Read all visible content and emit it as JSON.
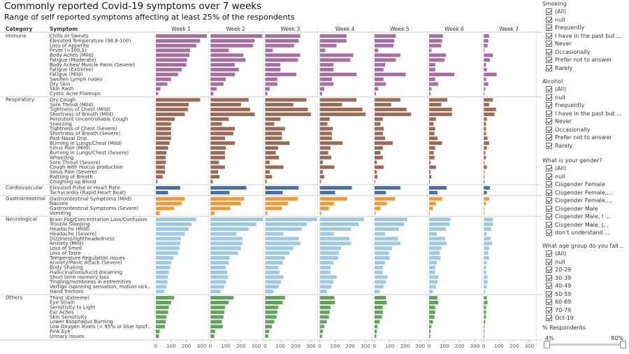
{
  "title": "Commonly reported Covid-19 symptoms over 7 weeks",
  "subtitle": "Range of self reported symptoms affecting at least 25% of the respondents",
  "chart_data": {
    "type": "bar",
    "orientation": "horizontal",
    "row_header": "Category",
    "symptom_header": "Symptom",
    "weeks": [
      "Week 1",
      "Week 2",
      "Week 3",
      "Week 4",
      "Week 5",
      "Week 6",
      "Week 7"
    ],
    "x_ticks": [
      0,
      100,
      200,
      300
    ],
    "xlim": [
      0,
      330
    ],
    "categories": [
      {
        "name": "Immune",
        "color": "#a86ea1",
        "symptoms": [
          {
            "label": "Chills or Sweats",
            "values": [
              335,
              340,
              230,
              175,
              140,
              90,
              35
            ]
          },
          {
            "label": "Elevated Temperature (98.8-100)",
            "values": [
              290,
              290,
              220,
              175,
              130,
              85,
              30
            ]
          },
          {
            "label": "Loss of Appetite",
            "values": [
              265,
              280,
              190,
              110,
              125,
              80,
              25
            ]
          },
          {
            "label": "Fever (>100.1)",
            "values": [
              225,
              120,
              50,
              35,
              25,
              15,
              5
            ]
          },
          {
            "label": "Body Aches (Mild)",
            "values": [
              220,
              215,
              230,
              220,
              170,
              110,
              60
            ]
          },
          {
            "label": "Fatigue (Moderate)",
            "values": [
              205,
              230,
              215,
              200,
              140,
              100,
              40
            ]
          },
          {
            "label": "Body Aches/ Muscle Pains (Severe)",
            "values": [
              200,
              160,
              100,
              90,
              70,
              40,
              15
            ]
          },
          {
            "label": "Fatigue (Extreme)",
            "values": [
              170,
              185,
              100,
              90,
              60,
              40,
              20
            ]
          },
          {
            "label": "Fatigue (Mild)",
            "values": [
              145,
              160,
              205,
              240,
              205,
              165,
              85
            ]
          },
          {
            "label": "Swollen Lymph nodes",
            "values": [
              100,
              100,
              80,
              80,
              60,
              40,
              15
            ]
          },
          {
            "label": "Dry Skin",
            "values": [
              75,
              85,
              80,
              90,
              75,
              60,
              30
            ]
          },
          {
            "label": "Skin Rash",
            "values": [
              30,
              40,
              30,
              30,
              25,
              15,
              10
            ]
          },
          {
            "label": "Cystic Acne Flareups",
            "values": [
              15,
              20,
              15,
              15,
              10,
              10,
              5
            ]
          }
        ]
      },
      {
        "name": "Respiratory",
        "color": "#9c6b57",
        "symptoms": [
          {
            "label": "Dry Cough",
            "values": [
              290,
              250,
              270,
              240,
              170,
              120,
              60
            ]
          },
          {
            "label": "Sore Throat (Mild)",
            "values": [
              215,
              200,
              185,
              145,
              110,
              80,
              35
            ]
          },
          {
            "label": "Tightness of Chest (Mild)",
            "values": [
              210,
              260,
              280,
              280,
              210,
              150,
              80
            ]
          },
          {
            "label": "Shortness of Breath (Mild)",
            "values": [
              190,
              290,
              300,
              300,
              240,
              150,
              70
            ]
          },
          {
            "label": "Persistent Uncontrollable Cough",
            "values": [
              125,
              120,
              100,
              65,
              55,
              45,
              20
            ]
          },
          {
            "label": "Sneezing",
            "values": [
              100,
              75,
              60,
              50,
              40,
              30,
              15
            ]
          },
          {
            "label": "Tightness of Chest (Severe)",
            "values": [
              100,
              160,
              130,
              85,
              60,
              40,
              15
            ]
          },
          {
            "label": "Shortness of Breath (Severe)",
            "values": [
              100,
              150,
              110,
              80,
              55,
              35,
              15
            ]
          },
          {
            "label": "Post-Nasal Drip",
            "values": [
              100,
              95,
              110,
              80,
              70,
              55,
              25
            ]
          },
          {
            "label": "Burning in Lungs/Chest (Mild)",
            "values": [
              90,
              160,
              160,
              150,
              120,
              85,
              35
            ]
          },
          {
            "label": "Sinus Pain (Mild)",
            "values": [
              80,
              100,
              85,
              70,
              55,
              40,
              20
            ]
          },
          {
            "label": "Burning in Lungs/Chest (Severe)",
            "values": [
              70,
              95,
              70,
              55,
              40,
              30,
              10
            ]
          },
          {
            "label": "Wheezing",
            "values": [
              65,
              95,
              90,
              75,
              55,
              35,
              15
            ]
          },
          {
            "label": "Sore Throat (Severe)",
            "values": [
              65,
              55,
              30,
              20,
              15,
              10,
              5
            ]
          },
          {
            "label": "Cough with mucus production",
            "values": [
              60,
              95,
              120,
              95,
              60,
              45,
              20
            ]
          },
          {
            "label": "Sinus Pain (Severe)",
            "values": [
              60,
              50,
              30,
              20,
              15,
              10,
              5
            ]
          },
          {
            "label": "Rattling of Breath",
            "values": [
              45,
              60,
              45,
              30,
              20,
              15,
              5
            ]
          },
          {
            "label": "Coughing up Blood",
            "values": [
              10,
              15,
              10,
              8,
              5,
              3,
              2
            ]
          }
        ]
      },
      {
        "name": "Cardiovascular",
        "color": "#4a70a0",
        "symptoms": [
          {
            "label": "Elevated Pulse or Heart Rate",
            "values": [
              160,
              235,
              220,
              210,
              170,
              115,
              40
            ]
          },
          {
            "label": "Tachycardia (Rapid Heart Beat)",
            "values": [
              80,
              125,
              115,
              100,
              75,
              55,
              20
            ]
          }
        ]
      },
      {
        "name": "Gastrointestinal",
        "color": "#ef9a3a",
        "symptoms": [
          {
            "label": "Gastrointestinal Symptoms (Mild)",
            "values": [
              190,
              220,
              215,
              180,
              135,
              85,
              35
            ]
          },
          {
            "label": "Nausea",
            "values": [
              170,
              200,
              150,
              95,
              80,
              45,
              15
            ]
          },
          {
            "label": "Gastrointestinal Symptoms (Severe)",
            "values": [
              120,
              130,
              110,
              60,
              40,
              25,
              5
            ]
          },
          {
            "label": "Vomiting",
            "values": [
              25,
              25,
              15,
              10,
              8,
              5,
              2
            ]
          }
        ]
      },
      {
        "name": "Neurological",
        "color": "#9fc7e6",
        "symptoms": [
          {
            "label": "Brain Fog/Concentration Loss/Confusion",
            "values": [
              265,
              345,
              340,
              290,
              215,
              140,
              60
            ]
          },
          {
            "label": "Trouble Sleeping",
            "values": [
              235,
              300,
              275,
              255,
              195,
              135,
              60
            ]
          },
          {
            "label": "Headache (Mild)",
            "values": [
              215,
              250,
              240,
              205,
              160,
              110,
              50
            ]
          },
          {
            "label": "Headache (Severe)",
            "values": [
              190,
              170,
              120,
              90,
              70,
              50,
              20
            ]
          },
          {
            "label": "Dizziness/lightheadedness",
            "values": [
              165,
              210,
              220,
              195,
              155,
              105,
              45
            ]
          },
          {
            "label": "Anxiety (Mild)",
            "values": [
              160,
              210,
              230,
              205,
              170,
              115,
              55
            ]
          },
          {
            "label": "Loss of Smell",
            "values": [
              155,
              200,
              185,
              140,
              115,
              80,
              35
            ]
          },
          {
            "label": "Loss of Taste",
            "values": [
              145,
              180,
              160,
              125,
              95,
              70,
              30
            ]
          },
          {
            "label": "Temperature Regulation Issues",
            "values": [
              115,
              125,
              130,
              120,
              100,
              75,
              35
            ]
          },
          {
            "label": "Anxiety/Panic Attack (Severe)",
            "values": [
              100,
              120,
              115,
              90,
              70,
              50,
              20
            ]
          },
          {
            "label": "Body Shaking",
            "values": [
              95,
              100,
              85,
              70,
              55,
              40,
              15
            ]
          },
          {
            "label": "Hallucinations/lucid dreaming",
            "values": [
              85,
              110,
              95,
              70,
              55,
              40,
              15
            ]
          },
          {
            "label": "Short term memory loss",
            "values": [
              80,
              115,
              120,
              110,
              85,
              60,
              25
            ]
          },
          {
            "label": "Tingling/numbness in extremities",
            "values": [
              75,
              100,
              105,
              90,
              75,
              55,
              25
            ]
          },
          {
            "label": "Vertigo (spinning sensation, motion sick..",
            "values": [
              70,
              90,
              90,
              75,
              60,
              45,
              20
            ]
          },
          {
            "label": "Hand Tremors",
            "values": [
              55,
              65,
              55,
              45,
              35,
              25,
              10
            ]
          }
        ]
      },
      {
        "name": "Others",
        "color": "#63a35c",
        "symptoms": [
          {
            "label": "Thirst (Extreme)",
            "values": [
              120,
              150,
              130,
              95,
              75,
              55,
              20
            ]
          },
          {
            "label": "Eye Strain",
            "values": [
              100,
              120,
              115,
              100,
              80,
              60,
              25
            ]
          },
          {
            "label": "Sensitivity to Light",
            "values": [
              85,
              95,
              85,
              70,
              55,
              40,
              15
            ]
          },
          {
            "label": "Ear Aches",
            "values": [
              80,
              90,
              80,
              65,
              55,
              40,
              15
            ]
          },
          {
            "label": "Skin Sensitivity",
            "values": [
              70,
              85,
              75,
              60,
              50,
              35,
              15
            ]
          },
          {
            "label": "Lower Esophagus Burning",
            "values": [
              65,
              75,
              60,
              45,
              35,
              25,
              10
            ]
          },
          {
            "label": "Low Oxygen levels (< 95% or blue lips/f..",
            "values": [
              60,
              80,
              45,
              30,
              20,
              15,
              5
            ]
          },
          {
            "label": "Pink Eye",
            "values": [
              25,
              30,
              25,
              20,
              15,
              10,
              5
            ]
          },
          {
            "label": "Urinary Issues",
            "values": [
              20,
              25,
              20,
              15,
              12,
              8,
              3
            ]
          }
        ]
      }
    ]
  },
  "filters": [
    {
      "title": "Smoking",
      "options": [
        "(All)",
        "null",
        "Frequently",
        "I have in the past but ...",
        "Never",
        "Occasionally",
        "Prefer not to answer",
        "Rarely"
      ]
    },
    {
      "title": "Alcohol",
      "options": [
        "(All)",
        "null",
        "Frequently",
        "I have in the past but ...",
        "Never",
        "Occasionally",
        "Prefer not to answer",
        "Rarely"
      ]
    },
    {
      "title": "What is your gender?",
      "options": [
        "(All)",
        "null",
        "Cisgender Female",
        "Cisgender Female,...",
        "Cisgender Female,...",
        "Cisgender Male",
        "Cisgender Male, I ...",
        "Cisgender Male, J...",
        "don't understand ..."
      ]
    },
    {
      "title": "What age group do you fall...",
      "options": [
        "(All)",
        "null",
        "20-29",
        "30-39",
        "40-49",
        "50-59",
        "60-69",
        "70-79",
        "Oct-19"
      ]
    }
  ],
  "range_filter": {
    "title": "% Respondents",
    "min_label": "4%",
    "max_label": "80%",
    "min_value": 4,
    "max_value": 80
  }
}
